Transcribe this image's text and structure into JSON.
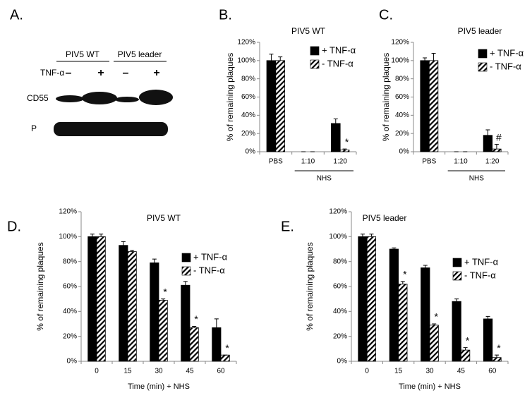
{
  "panel_a": {
    "letter": "A.",
    "groups": [
      "PIV5 WT",
      "PIV5 leader"
    ],
    "treatment": "TNF-α",
    "signs": [
      "–",
      "+",
      "–",
      "+"
    ],
    "rows": [
      "CD55",
      "P"
    ]
  },
  "chart_data": [
    {
      "type": "bar",
      "letter": "B.",
      "title": "PIV5 WT",
      "y_label": "% of remaining plaques",
      "categories": [
        "PBS",
        "1:10",
        "1:20"
      ],
      "x_group": {
        "label": "NHS",
        "from": "1:10",
        "to": "1:20"
      },
      "series": [
        {
          "name": "+ TNF-α",
          "color": "#000000",
          "values": [
            100,
            0,
            31
          ],
          "error": [
            7,
            0,
            5
          ]
        },
        {
          "name": "- TNF-α",
          "color": "hatch",
          "values": [
            100,
            0,
            2
          ],
          "error": [
            4,
            0,
            1
          ],
          "annotations": [
            null,
            null,
            "*"
          ]
        }
      ],
      "ylim": [
        0,
        120
      ],
      "yticks": [
        {
          "value": 0,
          "label": "0%"
        },
        {
          "value": 20,
          "label": "20%"
        },
        {
          "value": 40,
          "label": "40%"
        },
        {
          "value": 60,
          "label": "60%"
        },
        {
          "value": 80,
          "label": "80%"
        },
        {
          "value": 100,
          "label": "100%"
        },
        {
          "value": 120,
          "label": "120%"
        }
      ]
    },
    {
      "type": "bar",
      "letter": "C.",
      "title": "PIV5 leader",
      "y_label": "% of remaining plaques",
      "categories": [
        "PBS",
        "1:10",
        "1:20"
      ],
      "x_group": {
        "label": "NHS",
        "from": "1:10",
        "to": "1:20"
      },
      "series": [
        {
          "name": "+ TNF-α",
          "color": "#000000",
          "values": [
            100,
            0,
            18
          ],
          "error": [
            3,
            0,
            6
          ]
        },
        {
          "name": "- TNF-α",
          "color": "hatch",
          "values": [
            100,
            0,
            3
          ],
          "error": [
            8,
            0,
            5
          ],
          "annotations": [
            null,
            null,
            "#"
          ]
        }
      ],
      "ylim": [
        0,
        120
      ],
      "yticks": [
        {
          "value": 0,
          "label": "0%"
        },
        {
          "value": 20,
          "label": "20%"
        },
        {
          "value": 40,
          "label": "40%"
        },
        {
          "value": 60,
          "label": "60%"
        },
        {
          "value": 80,
          "label": "80%"
        },
        {
          "value": 100,
          "label": "100%"
        },
        {
          "value": 120,
          "label": "120%"
        }
      ]
    },
    {
      "type": "bar",
      "letter": "D.",
      "title": "PIV5 WT",
      "y_label": "% of remaining plaques",
      "x_label": "Time (min) + NHS",
      "categories": [
        "0",
        "15",
        "30",
        "45",
        "60"
      ],
      "series": [
        {
          "name": "+ TNF-α",
          "color": "#000000",
          "values": [
            100,
            93,
            79,
            61,
            27
          ],
          "error": [
            2,
            3,
            3,
            3,
            7
          ]
        },
        {
          "name": "- TNF-α",
          "color": "hatch",
          "values": [
            100,
            88,
            49,
            27,
            5
          ],
          "error": [
            2,
            1,
            1,
            1,
            0
          ],
          "annotations": [
            null,
            null,
            "*",
            "*",
            "*"
          ]
        }
      ],
      "ylim": [
        0,
        120
      ],
      "yticks": [
        {
          "value": 0,
          "label": "0%"
        },
        {
          "value": 20,
          "label": "20%"
        },
        {
          "value": 40,
          "label": "40%"
        },
        {
          "value": 60,
          "label": "60%"
        },
        {
          "value": 80,
          "label": "80%"
        },
        {
          "value": 100,
          "label": "100%"
        },
        {
          "value": 120,
          "label": "120%"
        }
      ]
    },
    {
      "type": "bar",
      "letter": "E.",
      "title": "PIV5 leader",
      "y_label": "% of remaining plaques",
      "x_label": "Time (min) + NHS",
      "categories": [
        "0",
        "15",
        "30",
        "45",
        "60"
      ],
      "series": [
        {
          "name": "+ TNF-α",
          "color": "#000000",
          "values": [
            100,
            90,
            75,
            48,
            34
          ],
          "error": [
            2,
            1,
            2,
            2,
            2
          ]
        },
        {
          "name": "- TNF-α",
          "color": "hatch",
          "values": [
            100,
            62,
            29,
            9,
            3
          ],
          "error": [
            2,
            2,
            1,
            2,
            2
          ],
          "annotations": [
            null,
            "*",
            "*",
            "*",
            "*"
          ]
        }
      ],
      "ylim": [
        0,
        120
      ],
      "yticks": [
        {
          "value": 0,
          "label": "0%"
        },
        {
          "value": 20,
          "label": "20%"
        },
        {
          "value": 40,
          "label": "40%"
        },
        {
          "value": 60,
          "label": "60%"
        },
        {
          "value": 80,
          "label": "80%"
        },
        {
          "value": 100,
          "label": "100%"
        },
        {
          "value": 120,
          "label": "120%"
        }
      ]
    }
  ]
}
